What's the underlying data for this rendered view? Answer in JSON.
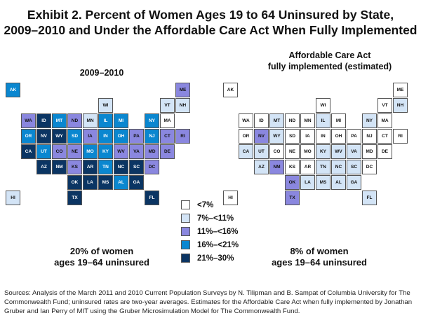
{
  "title_line1": "Exhibit 2. Percent of Women Ages 19 to 64 Uninsured by State,",
  "title_line2": "2009–2010 and Under the Affordable Care Act When Fully Implemented",
  "maps": [
    {
      "heading": [
        "2009–2010"
      ],
      "caption": [
        "20% of women",
        "ages 19–64 uninsured"
      ],
      "states": {
        "AK": 3,
        "HI": 1,
        "WA": 2,
        "OR": 3,
        "CA": 4,
        "NV": 4,
        "ID": 4,
        "MT": 3,
        "WY": 4,
        "UT": 3,
        "AZ": 4,
        "CO": 2,
        "NM": 4,
        "ND": 2,
        "SD": 3,
        "NE": 2,
        "KS": 2,
        "OK": 4,
        "TX": 4,
        "MN": 1,
        "IA": 2,
        "MO": 3,
        "AR": 4,
        "LA": 4,
        "WI": 1,
        "IL": 3,
        "MI": 3,
        "IN": 3,
        "OH": 3,
        "KY": 3,
        "TN": 3,
        "MS": 4,
        "AL": 3,
        "GA": 4,
        "FL": 4,
        "SC": 4,
        "NC": 4,
        "VA": 2,
        "WV": 2,
        "PA": 2,
        "NY": 3,
        "VT": 1,
        "NH": 1,
        "ME": 2,
        "MA": 0,
        "RI": 2,
        "CT": 2,
        "NJ": 3,
        "DE": 2,
        "MD": 2,
        "DC": 2
      }
    },
    {
      "heading": [
        "Affordable Care Act",
        "fully implemented (estimated)"
      ],
      "caption": [
        "8% of women",
        "ages 19–64 uninsured"
      ],
      "states": {
        "AK": 0,
        "HI": 0,
        "WA": 0,
        "OR": 0,
        "CA": 1,
        "NV": 2,
        "ID": 0,
        "MT": 1,
        "WY": 1,
        "UT": 1,
        "AZ": 1,
        "CO": 0,
        "NM": 2,
        "ND": 0,
        "SD": 0,
        "NE": 0,
        "KS": 0,
        "OK": 2,
        "TX": 2,
        "MN": 0,
        "IA": 0,
        "MO": 0,
        "AR": 0,
        "LA": 1,
        "WI": 0,
        "IL": 1,
        "MI": 0,
        "IN": 0,
        "OH": 0,
        "KY": 1,
        "TN": 1,
        "MS": 1,
        "AL": 1,
        "GA": 1,
        "FL": 1,
        "SC": 1,
        "NC": 1,
        "VA": 1,
        "WV": 1,
        "PA": 0,
        "NY": 1,
        "VT": 0,
        "NH": 1,
        "ME": 0,
        "MA": 0,
        "RI": 0,
        "CT": 0,
        "NJ": 0,
        "DE": 0,
        "MD": 0,
        "DC": 0
      }
    }
  ],
  "legend": [
    {
      "label": "<7%",
      "color": "#ffffff"
    },
    {
      "label": "7%–<11%",
      "color": "#d3e4f6"
    },
    {
      "label": "11%–<16%",
      "color": "#8a87df"
    },
    {
      "label": "16%–<21%",
      "color": "#0a87d0"
    },
    {
      "label": "21%–30%",
      "color": "#0b3563"
    }
  ],
  "sources": "Sources: Analysis of the March 2011 and 2010 Current Population Surveys by N. Tilipman and B. Sampat of Columbia University for The Commonwealth Fund; uninsured rates are two-year averages. Estimates for the Affordable Care Act when fully implemented by Jonathan Gruber and Ian Perry of MIT using the Gruber Microsimulation Model for The Commonwealth Fund."
}
